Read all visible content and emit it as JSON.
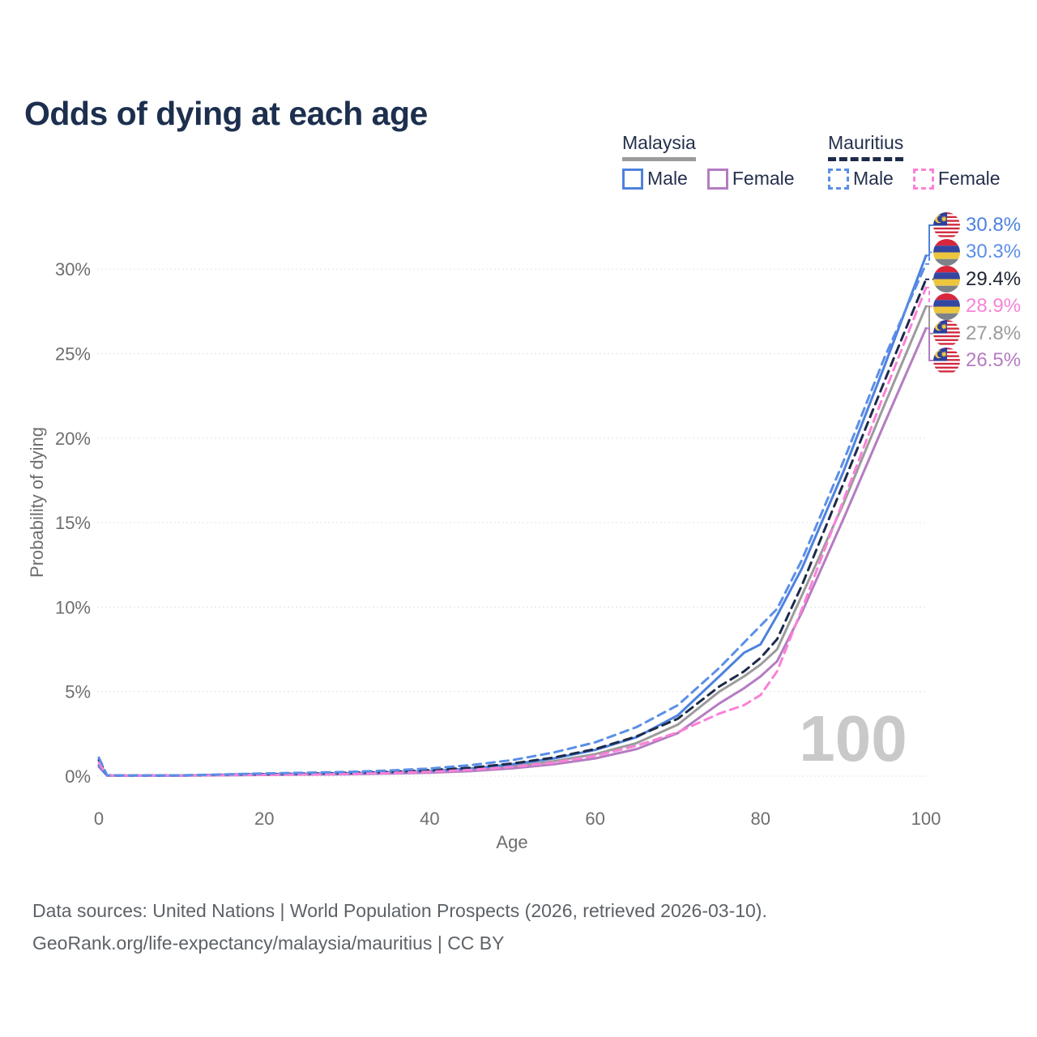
{
  "title": "Odds of dying at each age",
  "watermark": "100",
  "legend": {
    "groups": [
      {
        "title": "Malaysia",
        "style": "solid",
        "underline_color": "#9b9b9b",
        "items": [
          {
            "label": "Male",
            "color": "#4d82de",
            "dashed": false
          },
          {
            "label": "Female",
            "color": "#b47cc1",
            "dashed": false
          }
        ]
      },
      {
        "title": "Mauritius",
        "style": "dashed",
        "underline_color": "#1d2b49",
        "items": [
          {
            "label": "Male",
            "color": "#5b8fe8",
            "dashed": true
          },
          {
            "label": "Female",
            "color": "#fb80d8",
            "dashed": true
          }
        ]
      }
    ]
  },
  "axes": {
    "x": {
      "title": "Age",
      "ticks": [
        "0",
        "20",
        "40",
        "60",
        "80",
        "100"
      ],
      "tick_values": [
        0,
        20,
        40,
        60,
        80,
        100
      ]
    },
    "y": {
      "title": "Probability of dying",
      "ticks": [
        "0%",
        "5%",
        "10%",
        "15%",
        "20%",
        "25%",
        "30%"
      ],
      "tick_values": [
        0,
        5,
        10,
        15,
        20,
        25,
        30
      ]
    }
  },
  "end_labels": [
    {
      "value": "30.8%",
      "country": "malaysia",
      "color": "#4d82de",
      "series_index": 0,
      "series": "Malaysia Male"
    },
    {
      "value": "30.3%",
      "country": "mauritius",
      "color": "#5b8fe8",
      "series_index": 3,
      "series": "Mauritius Male"
    },
    {
      "value": "29.4%",
      "country": "mauritius",
      "color": "#1d2433",
      "series_index": 5,
      "series": "Mauritius Both sexes"
    },
    {
      "value": "28.9%",
      "country": "mauritius",
      "color": "#f783d7",
      "series_index": 4,
      "series": "Mauritius Female"
    },
    {
      "value": "27.8%",
      "country": "malaysia",
      "color": "#9b9b9b",
      "series_index": 2,
      "series": "Malaysia Both sexes"
    },
    {
      "value": "26.5%",
      "country": "malaysia",
      "color": "#b47cc1",
      "series_index": 1,
      "series": "Malaysia Female"
    }
  ],
  "footer": {
    "line1": "Data sources: United Nations | World Population Prospects (2026, retrieved 2026-03-10).",
    "line2": "GeoRank.org/life-expectancy/malaysia/mauritius | CC BY"
  },
  "colors": {
    "title_text": "#1d2f4e",
    "legend_text": "#24304d",
    "axis_text": "#6e6e6e",
    "footer_text": "#5d6268",
    "watermark_text": "#c9c9c9",
    "gridline": "#e3e3e3",
    "flag_malaysia": {
      "red": "#d0293e",
      "blue": "#2b3f9e",
      "yellow": "#f3c73c",
      "white": "#ffffff"
    },
    "flag_mauritius": {
      "red": "#d8263c",
      "blue": "#3446a0",
      "yellow": "#edc63e",
      "green": "#7d8288"
    }
  },
  "chart_data": {
    "type": "line",
    "title": "Odds of dying at each age",
    "xlabel": "Age",
    "ylabel": "Probability of dying",
    "unit": "%",
    "xlim": [
      0,
      100
    ],
    "ylim": [
      0,
      32.5
    ],
    "grid": true,
    "legend_position": "top-right",
    "x": [
      0,
      1,
      5,
      10,
      15,
      20,
      25,
      30,
      35,
      40,
      45,
      50,
      55,
      60,
      65,
      70,
      75,
      78,
      80,
      82,
      85,
      90,
      95,
      100
    ],
    "series": [
      {
        "name": "Malaysia Male",
        "color": "#4d82de",
        "dashed": false,
        "values": [
          0.65,
          0.04,
          0.03,
          0.04,
          0.08,
          0.12,
          0.14,
          0.17,
          0.22,
          0.3,
          0.45,
          0.7,
          1.05,
          1.55,
          2.3,
          3.6,
          5.9,
          7.3,
          7.8,
          9.5,
          12.3,
          18.0,
          24.3,
          30.8
        ],
        "end_value_pct": 30.8
      },
      {
        "name": "Malaysia Female",
        "color": "#b47cc1",
        "dashed": false,
        "values": [
          0.55,
          0.03,
          0.025,
          0.03,
          0.05,
          0.07,
          0.09,
          0.11,
          0.15,
          0.2,
          0.3,
          0.46,
          0.7,
          1.05,
          1.6,
          2.55,
          4.3,
          5.2,
          5.9,
          6.8,
          9.7,
          15.2,
          20.9,
          26.5
        ],
        "end_value_pct": 26.5
      },
      {
        "name": "Malaysia Both sexes",
        "color": "#9b9b9b",
        "dashed": false,
        "values": [
          0.6,
          0.035,
          0.028,
          0.035,
          0.06,
          0.09,
          0.11,
          0.14,
          0.18,
          0.25,
          0.38,
          0.58,
          0.88,
          1.3,
          1.95,
          3.05,
          5.0,
          5.9,
          6.6,
          7.5,
          10.7,
          16.1,
          22.0,
          27.8
        ],
        "end_value_pct": 27.8
      },
      {
        "name": "Mauritius Male",
        "color": "#5b8fe8",
        "dashed": true,
        "values": [
          1.1,
          0.05,
          0.04,
          0.05,
          0.1,
          0.16,
          0.2,
          0.25,
          0.33,
          0.45,
          0.65,
          0.95,
          1.4,
          2.0,
          2.9,
          4.2,
          6.4,
          7.9,
          8.9,
          9.9,
          12.8,
          18.6,
          24.8,
          30.3
        ],
        "end_value_pct": 30.3
      },
      {
        "name": "Mauritius Female",
        "color": "#fb80d8",
        "dashed": true,
        "values": [
          0.8,
          0.04,
          0.03,
          0.04,
          0.06,
          0.08,
          0.1,
          0.13,
          0.18,
          0.26,
          0.37,
          0.55,
          0.8,
          1.2,
          1.8,
          2.6,
          3.7,
          4.2,
          4.8,
          6.2,
          9.9,
          16.3,
          22.7,
          28.9
        ],
        "end_value_pct": 28.9
      },
      {
        "name": "Mauritius Both sexes",
        "color": "#1d2b49",
        "dashed": true,
        "values": [
          0.95,
          0.045,
          0.035,
          0.045,
          0.08,
          0.12,
          0.15,
          0.19,
          0.25,
          0.35,
          0.5,
          0.75,
          1.1,
          1.6,
          2.35,
          3.4,
          5.3,
          6.2,
          7.0,
          8.1,
          11.3,
          17.3,
          23.4,
          29.4
        ],
        "end_value_pct": 29.4
      }
    ]
  }
}
